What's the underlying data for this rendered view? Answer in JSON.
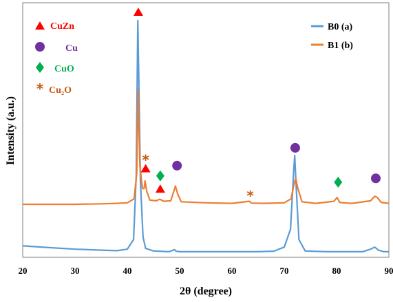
{
  "chart_data": {
    "type": "line",
    "title": "",
    "xlabel": "2θ (degree)",
    "ylabel": "Intensity (a.u.)",
    "xlim": [
      20,
      90
    ],
    "x_ticks": [
      "20",
      "30",
      "40",
      "50",
      "60",
      "70",
      "80",
      "90"
    ],
    "y_ticks_shown": false,
    "grid": false,
    "legend_position": "top-right",
    "series": [
      {
        "name": "B0 (a)",
        "color": "#5B9BD5",
        "x": [
          20,
          25,
          30,
          35,
          38,
          40,
          41.2,
          41.7,
          42.0,
          42.2,
          42.5,
          43.0,
          43.5,
          45,
          48,
          49.0,
          49.3,
          50,
          55,
          60,
          65,
          68,
          70,
          71.2,
          71.8,
          72.0,
          72.3,
          72.8,
          74,
          78,
          82,
          85,
          86.5,
          87.3,
          88,
          89,
          90
        ],
        "y": [
          0.045,
          0.038,
          0.032,
          0.028,
          0.026,
          0.032,
          0.07,
          0.32,
          0.93,
          0.7,
          0.3,
          0.08,
          0.035,
          0.025,
          0.022,
          0.03,
          0.024,
          0.022,
          0.022,
          0.022,
          0.022,
          0.024,
          0.04,
          0.11,
          0.34,
          0.4,
          0.27,
          0.07,
          0.025,
          0.022,
          0.022,
          0.022,
          0.032,
          0.04,
          0.028,
          0.022,
          0.022
        ]
      },
      {
        "name": "B1 (b)",
        "color": "#ED7D31",
        "x": [
          20,
          25,
          30,
          35,
          38,
          40,
          41.3,
          41.8,
          42.05,
          42.4,
          42.9,
          43.2,
          43.4,
          43.7,
          44.3,
          45.5,
          46.2,
          47,
          48.3,
          48.9,
          49.2,
          49.6,
          50.3,
          55,
          60,
          63.3,
          63.7,
          66,
          70,
          71.3,
          71.9,
          72.2,
          72.6,
          73.4,
          76,
          79.5,
          80.1,
          80.6,
          83,
          86.5,
          87.3,
          87.8,
          88.5,
          90
        ],
        "y": [
          0.208,
          0.208,
          0.208,
          0.21,
          0.212,
          0.214,
          0.23,
          0.33,
          0.66,
          0.36,
          0.27,
          0.27,
          0.3,
          0.26,
          0.225,
          0.222,
          0.228,
          0.22,
          0.222,
          0.26,
          0.28,
          0.25,
          0.218,
          0.214,
          0.212,
          0.22,
          0.213,
          0.212,
          0.214,
          0.23,
          0.29,
          0.31,
          0.27,
          0.218,
          0.212,
          0.22,
          0.235,
          0.215,
          0.212,
          0.222,
          0.24,
          0.235,
          0.216,
          0.212
        ]
      }
    ],
    "phase_legend": [
      {
        "label": "CuZn",
        "marker": "triangle",
        "color": "#FF0000"
      },
      {
        "label": "Cu",
        "marker": "circle",
        "color": "#7030A0"
      },
      {
        "label": "CuO",
        "marker": "diamond",
        "color": "#00B050"
      },
      {
        "label": "Cu₂O",
        "marker": "asterisk",
        "color": "#C55A11"
      }
    ],
    "annotations": [
      {
        "marker": "triangle",
        "color": "#FF0000",
        "x": 42.1,
        "y": 0.965
      },
      {
        "marker": "asterisk",
        "color": "#C55A11",
        "x": 43.5,
        "y": 0.39
      },
      {
        "marker": "triangle",
        "color": "#FF0000",
        "x": 43.5,
        "y": 0.35
      },
      {
        "marker": "diamond",
        "color": "#00B050",
        "x": 46.3,
        "y": 0.32
      },
      {
        "marker": "triangle",
        "color": "#FF0000",
        "x": 46.3,
        "y": 0.27
      },
      {
        "marker": "circle",
        "color": "#7030A0",
        "x": 49.5,
        "y": 0.36
      },
      {
        "marker": "asterisk",
        "color": "#C55A11",
        "x": 63.5,
        "y": 0.25
      },
      {
        "marker": "circle",
        "color": "#7030A0",
        "x": 72.1,
        "y": 0.43
      },
      {
        "marker": "diamond",
        "color": "#00B050",
        "x": 80.3,
        "y": 0.295
      },
      {
        "marker": "circle",
        "color": "#7030A0",
        "x": 87.5,
        "y": 0.31
      }
    ]
  }
}
